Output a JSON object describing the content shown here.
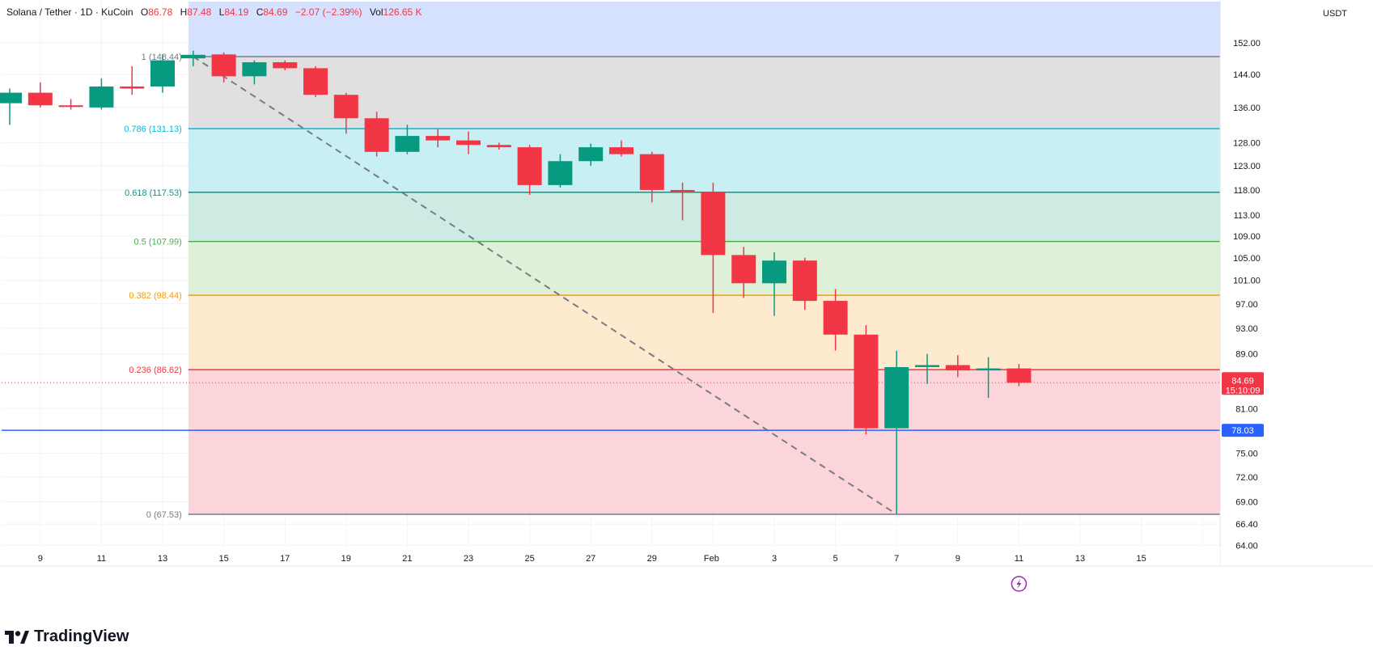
{
  "header": {
    "symbol": "Solana / Tether · 1D · KuCoin",
    "o_label": "O",
    "o": "86.78",
    "h_label": "H",
    "h": "87.48",
    "l_label": "L",
    "l": "84.19",
    "c_label": "C",
    "c": "84.69",
    "change": "−2.07 (−2.39%)",
    "vol_label": "Vol",
    "vol": "126.65 K"
  },
  "currency_button": "USDT",
  "brand": "TradingView",
  "colors": {
    "up": "#089981",
    "down": "#f23645",
    "fib_1": "#787b86",
    "fib_0786": "#00bcd4",
    "fib_0618": "#089981",
    "fib_05": "#4caf50",
    "fib_0382": "#ff9800",
    "fib_0236": "#f23645",
    "fib_0": "#787b86",
    "support_line": "#2962ff",
    "last_price_tag": "#f23645",
    "support_tag": "#2962ff"
  },
  "chart_data": {
    "type": "candlestick",
    "x_ticks": [
      "9",
      "11",
      "13",
      "15",
      "17",
      "19",
      "21",
      "23",
      "25",
      "27",
      "29",
      "Feb",
      "3",
      "5",
      "7",
      "9",
      "11",
      "13",
      "15"
    ],
    "y_ticks": [
      "152.00",
      "144.00",
      "136.00",
      "128.00",
      "123.00",
      "118.00",
      "113.00",
      "109.00",
      "105.00",
      "101.00",
      "97.00",
      "93.00",
      "89.00",
      "81.00",
      "75.00",
      "72.00",
      "69.00",
      "66.40",
      "64.00"
    ],
    "y_tick_values": [
      152,
      144,
      136,
      128,
      123,
      118,
      113,
      109,
      105,
      101,
      97,
      93,
      89,
      81,
      75,
      72,
      69,
      66.4,
      64
    ],
    "ylim": [
      63.6,
      160
    ],
    "scale": "log",
    "candles": [
      {
        "d": "Jan 8",
        "o": 137.0,
        "h": 140.5,
        "l": 132.0,
        "c": 139.5
      },
      {
        "d": "Jan 9",
        "o": 139.5,
        "h": 142.0,
        "l": 136.0,
        "c": 136.5
      },
      {
        "d": "Jan 10",
        "o": 136.5,
        "h": 138.0,
        "l": 135.5,
        "c": 136.2
      },
      {
        "d": "Jan 11",
        "o": 136.0,
        "h": 143.0,
        "l": 135.5,
        "c": 141.0
      },
      {
        "d": "Jan 12",
        "o": 141.0,
        "h": 146.0,
        "l": 139.0,
        "c": 140.5
      },
      {
        "d": "Jan 13",
        "o": 141.0,
        "h": 149.0,
        "l": 139.5,
        "c": 147.5
      },
      {
        "d": "Jan 14",
        "o": 148.0,
        "h": 150.0,
        "l": 146.0,
        "c": 148.9
      },
      {
        "d": "Jan 15",
        "o": 149.0,
        "h": 149.5,
        "l": 142.0,
        "c": 143.5
      },
      {
        "d": "Jan 16",
        "o": 143.5,
        "h": 147.5,
        "l": 141.5,
        "c": 147.0
      },
      {
        "d": "Jan 17",
        "o": 147.0,
        "h": 147.5,
        "l": 145.0,
        "c": 145.5
      },
      {
        "d": "Jan 18",
        "o": 145.5,
        "h": 146.0,
        "l": 138.5,
        "c": 139.0
      },
      {
        "d": "Jan 19",
        "o": 139.0,
        "h": 139.5,
        "l": 130.0,
        "c": 133.5
      },
      {
        "d": "Jan 20",
        "o": 133.5,
        "h": 135.0,
        "l": 125.0,
        "c": 126.0
      },
      {
        "d": "Jan 21",
        "o": 126.0,
        "h": 132.0,
        "l": 125.5,
        "c": 129.5
      },
      {
        "d": "Jan 22",
        "o": 129.5,
        "h": 131.0,
        "l": 127.0,
        "c": 128.5
      },
      {
        "d": "Jan 23",
        "o": 128.5,
        "h": 130.5,
        "l": 125.5,
        "c": 127.5
      },
      {
        "d": "Jan 24",
        "o": 127.5,
        "h": 128.0,
        "l": 126.5,
        "c": 127.0
      },
      {
        "d": "Jan 25",
        "o": 127.0,
        "h": 127.5,
        "l": 117.0,
        "c": 119.0
      },
      {
        "d": "Jan 26",
        "o": 119.0,
        "h": 125.5,
        "l": 118.5,
        "c": 124.0
      },
      {
        "d": "Jan 27",
        "o": 124.0,
        "h": 127.8,
        "l": 123.0,
        "c": 127.0
      },
      {
        "d": "Jan 28",
        "o": 127.0,
        "h": 128.5,
        "l": 125.0,
        "c": 125.5
      },
      {
        "d": "Jan 29",
        "o": 125.5,
        "h": 126.0,
        "l": 115.5,
        "c": 118.0
      },
      {
        "d": "Jan 30",
        "o": 118.0,
        "h": 119.5,
        "l": 112.0,
        "c": 117.5
      },
      {
        "d": "Jan 31",
        "o": 117.5,
        "h": 119.5,
        "l": 95.5,
        "c": 105.5
      },
      {
        "d": "Feb 1",
        "o": 105.5,
        "h": 107.0,
        "l": 98.0,
        "c": 100.5
      },
      {
        "d": "Feb 2",
        "o": 100.5,
        "h": 106.0,
        "l": 95.0,
        "c": 104.5
      },
      {
        "d": "Feb 3",
        "o": 104.5,
        "h": 105.0,
        "l": 96.0,
        "c": 97.5
      },
      {
        "d": "Feb 4",
        "o": 97.5,
        "h": 99.5,
        "l": 89.5,
        "c": 92.0
      },
      {
        "d": "Feb 5",
        "o": 92.0,
        "h": 93.5,
        "l": 77.5,
        "c": 78.3
      },
      {
        "d": "Feb 6",
        "o": 78.3,
        "h": 89.5,
        "l": 67.6,
        "c": 87.0
      },
      {
        "d": "Feb 7",
        "o": 87.0,
        "h": 89.0,
        "l": 84.5,
        "c": 87.3
      },
      {
        "d": "Feb 8",
        "o": 87.3,
        "h": 88.8,
        "l": 85.5,
        "c": 86.5
      },
      {
        "d": "Feb 9",
        "o": 86.5,
        "h": 88.5,
        "l": 82.5,
        "c": 86.8
      },
      {
        "d": "Feb 10",
        "o": 86.8,
        "h": 87.48,
        "l": 84.19,
        "c": 84.69
      }
    ],
    "fib_levels": [
      {
        "ratio": 1,
        "label": "1 (148.44)",
        "price": 148.44
      },
      {
        "ratio": 0.786,
        "label": "0.786 (131.13)",
        "price": 131.13
      },
      {
        "ratio": 0.618,
        "label": "0.618 (117.53)",
        "price": 117.53
      },
      {
        "ratio": 0.5,
        "label": "0.5 (107.99)",
        "price": 107.99
      },
      {
        "ratio": 0.382,
        "label": "0.382 (98.44)",
        "price": 98.44
      },
      {
        "ratio": 0.236,
        "label": "0.236 (86.62)",
        "price": 86.62
      },
      {
        "ratio": 0,
        "label": "0 (67.53)",
        "price": 67.53
      }
    ],
    "fib_trend": {
      "from": {
        "d": "Jan 14",
        "price": 148.44
      },
      "to": {
        "d": "Feb 6",
        "price": 67.53
      }
    },
    "support_line": {
      "price": 78.03,
      "label": "78.03"
    },
    "last_price": {
      "price": 84.69,
      "label": "84.69",
      "countdown": "15:10:09"
    }
  }
}
